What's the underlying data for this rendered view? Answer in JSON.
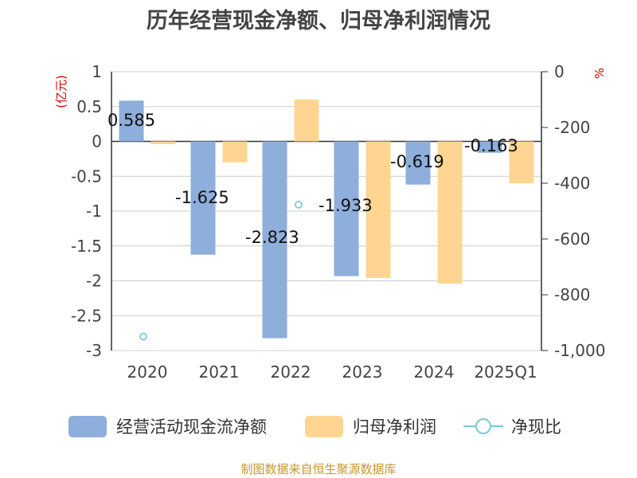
{
  "chart_data": {
    "type": "bar",
    "title": "历年经营现金净额、归母净利润情况",
    "categories": [
      "2020",
      "2021",
      "2022",
      "2023",
      "2024",
      "2025Q1"
    ],
    "left_axis": {
      "unit_label": "(亿元)",
      "ylim": [
        -3,
        1
      ],
      "ticks": [
        "1",
        "0.5",
        "0",
        "-0.5",
        "-1",
        "-1.5",
        "-2",
        "-2.5",
        "-3"
      ]
    },
    "right_axis": {
      "unit_label": "%",
      "ylim": [
        -1000,
        0
      ],
      "ticks": [
        "0",
        "-200",
        "-400",
        "-600",
        "-800",
        "-1,000"
      ]
    },
    "series": [
      {
        "name": "经营活动现金流净额",
        "axis": "left",
        "color": "#8eaedb",
        "values": [
          0.585,
          -1.625,
          -2.823,
          -1.933,
          -0.619,
          -0.163
        ],
        "labels": [
          "0.585",
          "-1.625",
          "-2.823",
          "-1.933",
          "-0.619",
          "-0.163"
        ]
      },
      {
        "name": "归母净利润",
        "axis": "left",
        "color": "#ffd591",
        "values": [
          -0.04,
          -0.3,
          0.6,
          -1.96,
          -2.04,
          -0.6
        ]
      },
      {
        "name": "净现比",
        "axis": "right",
        "type": "scatter",
        "color": "#7cc9d9",
        "values": [
          -950,
          null,
          -477,
          null,
          null,
          null
        ]
      }
    ],
    "grid": true,
    "legend_position": "bottom"
  },
  "source_text": "制图数据来自恒生聚源数据库"
}
